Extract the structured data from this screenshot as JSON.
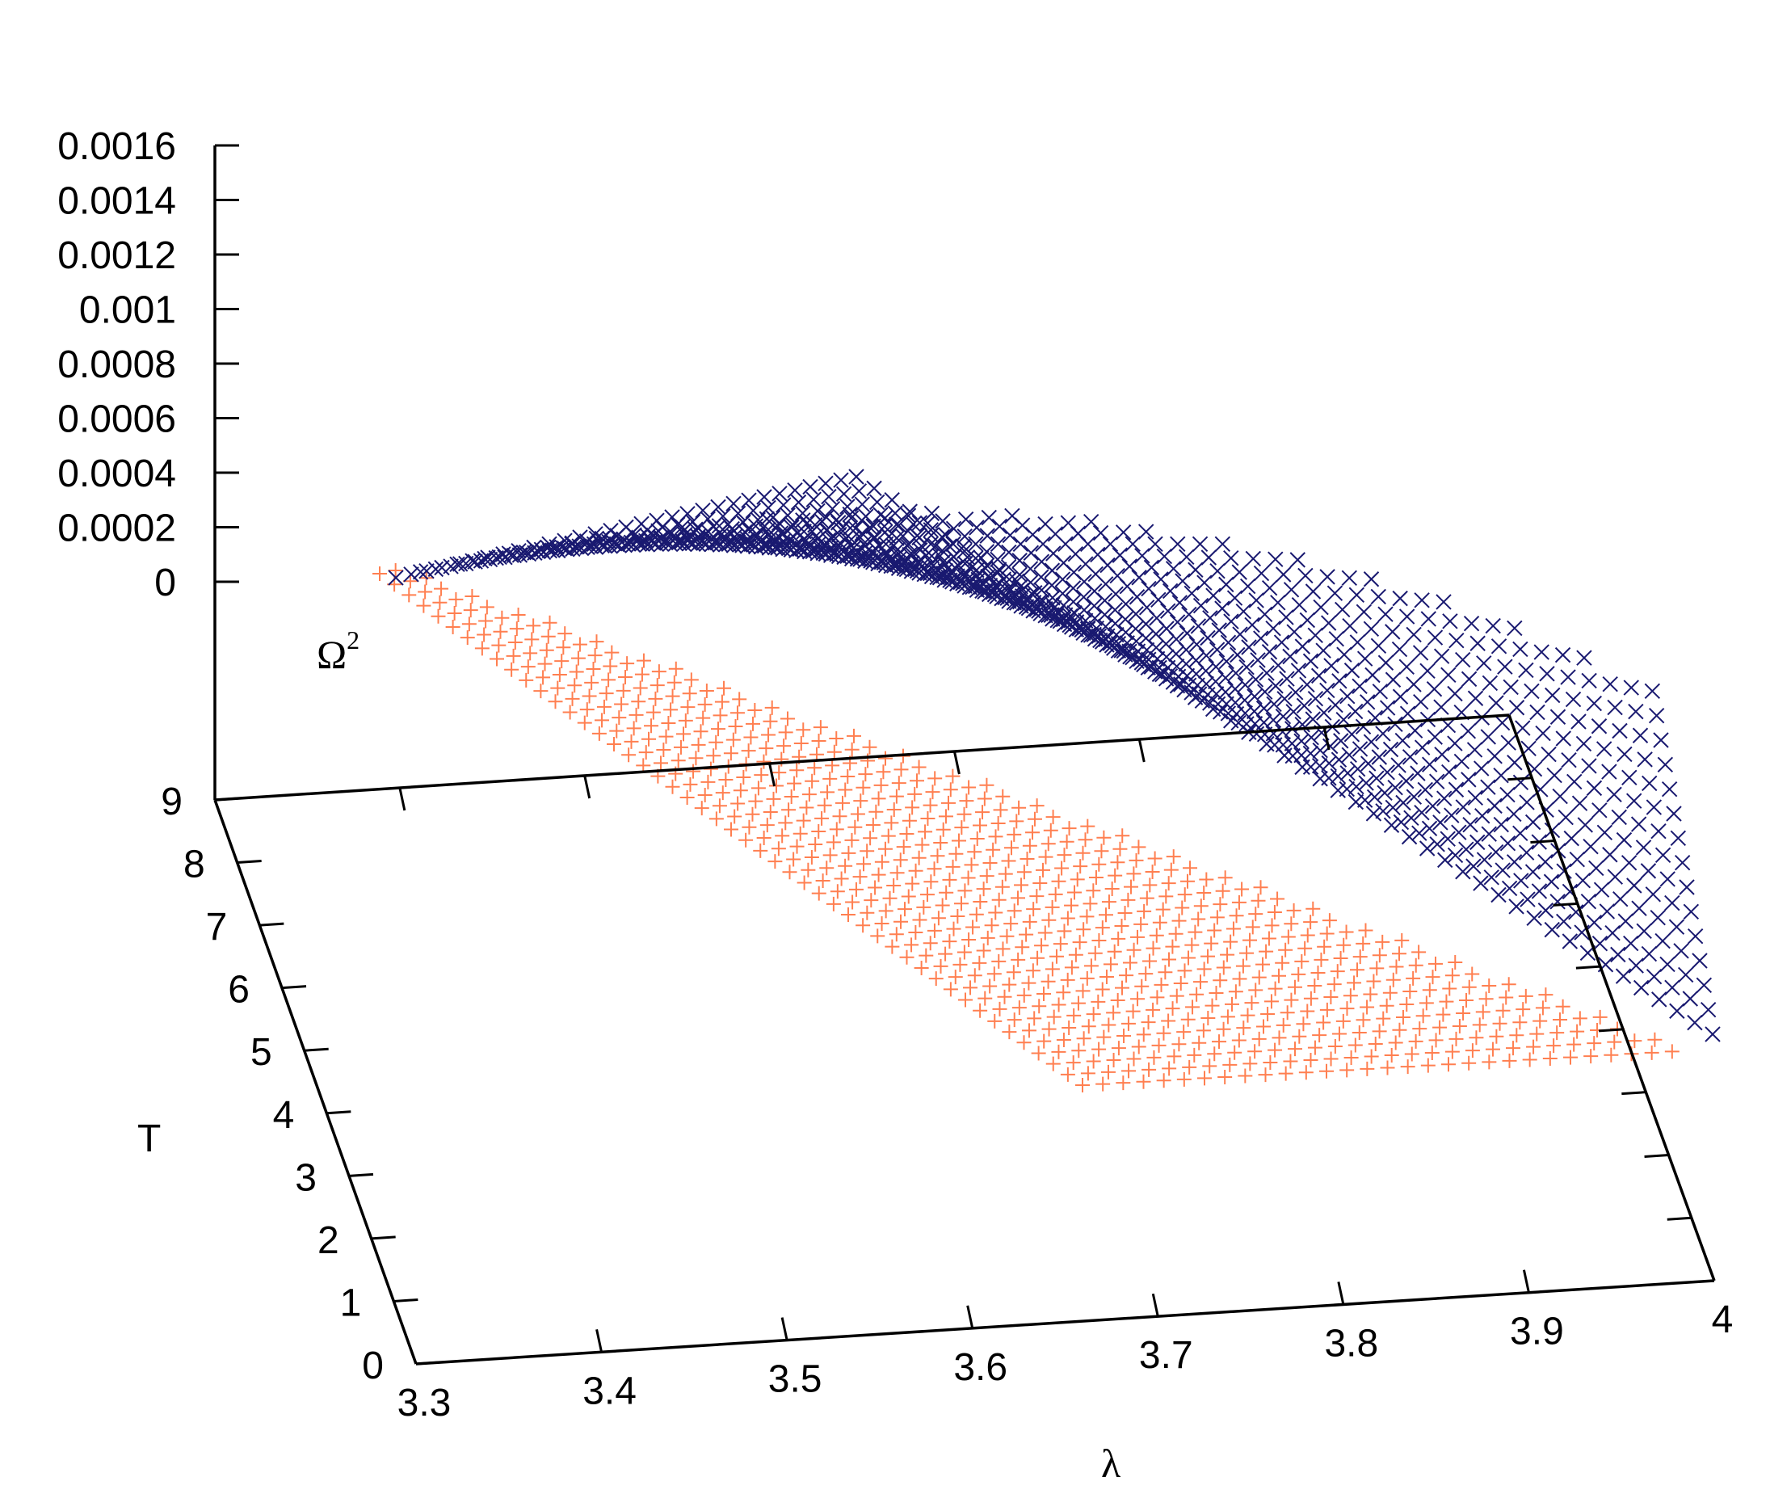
{
  "chart_data": {
    "type": "scatter",
    "dimension": "3d",
    "title": "",
    "xlabel": "λ",
    "ylabel": "T",
    "zlabel": "Ω",
    "zlabel_superscript": "2",
    "xlim": [
      3.3,
      4
    ],
    "ylim": [
      0,
      9
    ],
    "zlim": [
      0,
      0.0016
    ],
    "x_ticks": [
      "3.3",
      "3.4",
      "3.5",
      "3.6",
      "3.7",
      "3.8",
      "3.9",
      "4"
    ],
    "y_ticks": [
      "0",
      "1",
      "2",
      "3",
      "4",
      "5",
      "6",
      "7",
      "8",
      "9"
    ],
    "z_ticks": [
      "0",
      "0.0002",
      "0.0004",
      "0.0006",
      "0.0008",
      "0.001",
      "0.0012",
      "0.0014",
      "0.0016"
    ],
    "grid": false,
    "legend": "none",
    "series": [
      {
        "marker": "plus",
        "color": "#ff7f50",
        "description_values": {
          "x_range": [
            3.3,
            4.0
          ],
          "z_range": [
            -0.0012,
            0
          ],
          "z_at_x_min": 0,
          "z_at_x_max": -0.0012
        }
      },
      {
        "marker": "cross",
        "color": "#191970",
        "description_values": {
          "x_range": [
            3.3,
            4.0
          ],
          "z_range": [
            0,
            0.001
          ],
          "z_at_x_min": 0,
          "z_at_x_max": 0.001
        }
      }
    ]
  }
}
